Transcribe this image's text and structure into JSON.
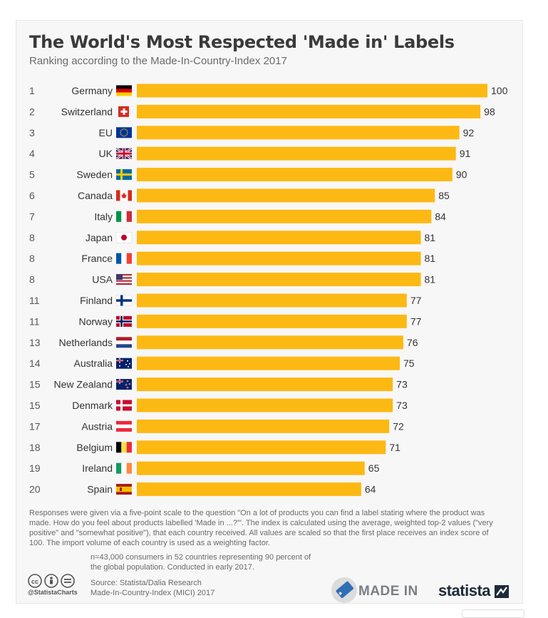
{
  "header": {
    "title": "The World's Most Respected 'Made in' Labels",
    "subtitle": "Ranking according to the Made-In-Country-Index 2017"
  },
  "chart_data": {
    "type": "bar",
    "orientation": "horizontal",
    "title": "The World's Most Respected 'Made in' Labels",
    "subtitle": "Ranking according to the Made-In-Country-Index 2017",
    "bar_color": "#fdb913",
    "xlim": [
      0,
      100
    ],
    "grid": false,
    "ranks": [
      "1",
      "2",
      "3",
      "4",
      "5",
      "6",
      "7",
      "8",
      "8",
      "8",
      "11",
      "11",
      "13",
      "14",
      "15",
      "15",
      "17",
      "18",
      "19",
      "20"
    ],
    "categories": [
      "Germany",
      "Switzerland",
      "EU",
      "UK",
      "Sweden",
      "Canada",
      "Italy",
      "Japan",
      "France",
      "USA",
      "Finland",
      "Norway",
      "Netherlands",
      "Australia",
      "New Zealand",
      "Denmark",
      "Austria",
      "Belgium",
      "Ireland",
      "Spain"
    ],
    "values": [
      100,
      98,
      92,
      91,
      90,
      85,
      84,
      81,
      81,
      81,
      77,
      77,
      76,
      75,
      73,
      73,
      72,
      71,
      65,
      64
    ],
    "flags": [
      "germany-flag-icon",
      "switzerland-flag-icon",
      "eu-flag-icon",
      "uk-flag-icon",
      "sweden-flag-icon",
      "canada-flag-icon",
      "italy-flag-icon",
      "japan-flag-icon",
      "france-flag-icon",
      "usa-flag-icon",
      "finland-flag-icon",
      "norway-flag-icon",
      "netherlands-flag-icon",
      "australia-flag-icon",
      "new-zealand-flag-icon",
      "denmark-flag-icon",
      "austria-flag-icon",
      "belgium-flag-icon",
      "ireland-flag-icon",
      "spain-flag-icon"
    ]
  },
  "footer": {
    "note": "Responses were given via a five-point scale to the question \"On a lot of products you can find a label stating where the product was made. How do you feel about products labelled 'Made in ...?'\". The index is calculated using the average, weighted top-2 values (\"very positive\" and \"somewhat positive\"), that each country received. All values are scaled so that the first place receives an index score of 100. The import volume of each country is used as a weighting factor.",
    "sample": "n=43,000 consumers in 52 countries representing 90 percent of the global population. Conducted in early 2017.",
    "source_line1": "Source: Statista/Dalia Research",
    "source_line2": "Made-In-Country-Index (MICI) 2017",
    "cc_handle": "@StatistaCharts",
    "madein_logo": "MADE IN",
    "statista_logo": "statista"
  }
}
